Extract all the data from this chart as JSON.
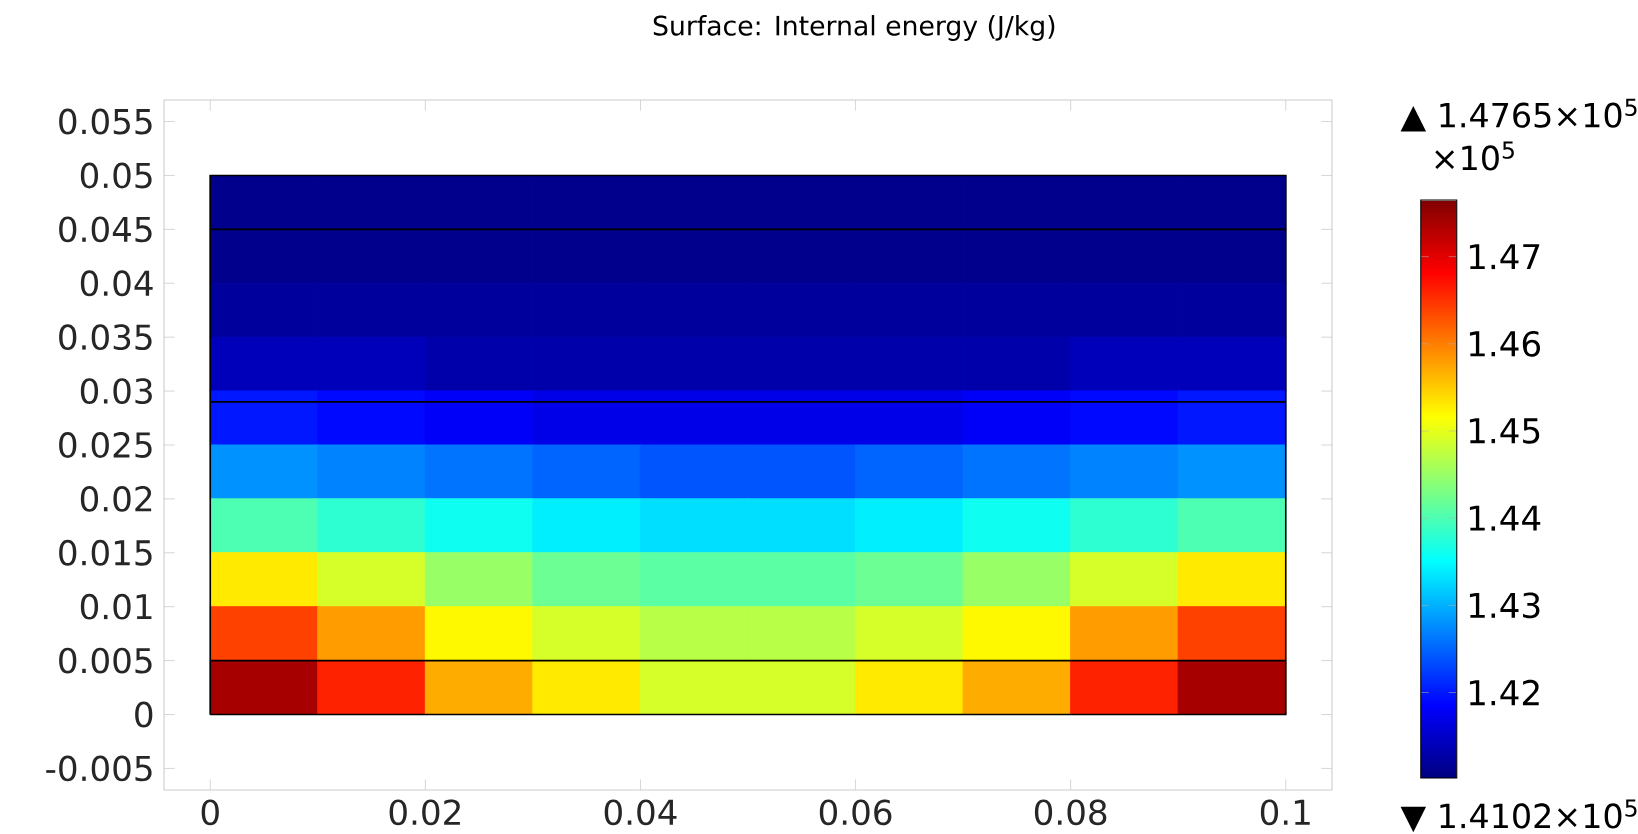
{
  "chart_data": {
    "type": "heatmap",
    "title": "Surface: Internal energy (J/kg)",
    "x": [
      0.005,
      0.015,
      0.025,
      0.035,
      0.045,
      0.055,
      0.065,
      0.075,
      0.085,
      0.095
    ],
    "y": [
      0.0475,
      0.0425,
      0.0375,
      0.0325,
      0.0275,
      0.0225,
      0.0175,
      0.0125,
      0.0075,
      0.0025
    ],
    "cells": [
      [
        1.411,
        1.411,
        1.411,
        1.411,
        1.411,
        1.411,
        1.411,
        1.411,
        1.411,
        1.411
      ],
      [
        1.411,
        1.411,
        1.411,
        1.411,
        1.411,
        1.411,
        1.411,
        1.411,
        1.411,
        1.411
      ],
      [
        1.412,
        1.412,
        1.412,
        1.412,
        1.412,
        1.412,
        1.412,
        1.412,
        1.412,
        1.412
      ],
      [
        1.414,
        1.414,
        1.413,
        1.413,
        1.413,
        1.413,
        1.413,
        1.413,
        1.414,
        1.414
      ],
      [
        1.42,
        1.419,
        1.418,
        1.417,
        1.417,
        1.417,
        1.417,
        1.418,
        1.419,
        1.42
      ],
      [
        1.428,
        1.427,
        1.426,
        1.425,
        1.424,
        1.424,
        1.425,
        1.426,
        1.427,
        1.428
      ],
      [
        1.44,
        1.438,
        1.436,
        1.434,
        1.433,
        1.433,
        1.434,
        1.436,
        1.438,
        1.44
      ],
      [
        1.453,
        1.449,
        1.445,
        1.442,
        1.441,
        1.441,
        1.442,
        1.445,
        1.449,
        1.453
      ],
      [
        1.464,
        1.458,
        1.452,
        1.449,
        1.447,
        1.447,
        1.449,
        1.452,
        1.458,
        1.464
      ],
      [
        1.474,
        1.466,
        1.457,
        1.453,
        1.449,
        1.449,
        1.453,
        1.457,
        1.466,
        1.474
      ]
    ],
    "clim": [
      1.4102,
      1.4765
    ],
    "cticks": [
      1.42,
      1.43,
      1.44,
      1.45,
      1.46,
      1.47
    ],
    "xlim": [
      -0.0043,
      0.1043
    ],
    "ylim": [
      -0.007,
      0.057
    ],
    "xticks": [
      0,
      0.02,
      0.04,
      0.06,
      0.08,
      0.1
    ],
    "yticks": [
      -0.005,
      0,
      0.005,
      0.01,
      0.015,
      0.02,
      0.025,
      0.03,
      0.035,
      0.04,
      0.045,
      0.05,
      0.055
    ],
    "ref_lines": [
      {
        "axis": "y",
        "value": 0.045,
        "color": "#000000"
      },
      {
        "axis": "y",
        "value": 0.029,
        "color": "#000000"
      },
      {
        "axis": "y",
        "value": 0.005,
        "color": "#000000"
      }
    ],
    "annotations": [
      "▲ 1.4765×10$^{5}$",
      "×10$^{5}$",
      "▼ 1.4102×10$^{5}$"
    ]
  }
}
